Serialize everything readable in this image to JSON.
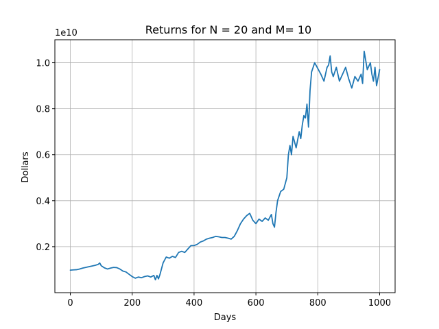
{
  "chart_data": {
    "type": "line",
    "title": "Returns for N = 20 and M= 10",
    "xlabel": "Days",
    "ylabel": "Dollars",
    "offset_label": "1e10",
    "xlim": [
      -50,
      1050
    ],
    "ylim": [
      0.0,
      1.1
    ],
    "xticks": [
      0,
      200,
      400,
      600,
      800,
      1000
    ],
    "xtick_labels": [
      "0",
      "200",
      "400",
      "600",
      "800",
      "1000"
    ],
    "yticks": [
      0.2,
      0.4,
      0.6,
      0.8,
      1.0
    ],
    "ytick_labels": [
      "0.2",
      "0.4",
      "0.6",
      "0.8",
      "1.0"
    ],
    "grid": true,
    "line_color": "#1f77b4",
    "series": [
      {
        "x": [
          0,
          10,
          20,
          30,
          40,
          50,
          60,
          70,
          80,
          90,
          95,
          100,
          110,
          120,
          130,
          140,
          150,
          160,
          170,
          180,
          190,
          200,
          210,
          220,
          230,
          240,
          250,
          260,
          270,
          275,
          280,
          285,
          290,
          300,
          310,
          320,
          330,
          340,
          350,
          360,
          370,
          380,
          390,
          400,
          410,
          420,
          430,
          440,
          450,
          460,
          470,
          480,
          490,
          500,
          510,
          520,
          530,
          540,
          550,
          560,
          570,
          580,
          590,
          600,
          610,
          620,
          630,
          640,
          650,
          655,
          660,
          665,
          670,
          680,
          690,
          700,
          705,
          710,
          715,
          720,
          730,
          740,
          745,
          750,
          755,
          760,
          765,
          770,
          775,
          780,
          790,
          800,
          810,
          820,
          830,
          835,
          840,
          845,
          850,
          860,
          870,
          880,
          890,
          900,
          910,
          920,
          930,
          940,
          945,
          950,
          960,
          970,
          975,
          980,
          985,
          990,
          1000
        ],
        "y": [
          0.098,
          0.099,
          0.1,
          0.103,
          0.107,
          0.11,
          0.113,
          0.116,
          0.119,
          0.123,
          0.129,
          0.117,
          0.108,
          0.103,
          0.107,
          0.11,
          0.109,
          0.103,
          0.094,
          0.09,
          0.08,
          0.07,
          0.063,
          0.068,
          0.065,
          0.07,
          0.073,
          0.068,
          0.075,
          0.056,
          0.075,
          0.06,
          0.08,
          0.13,
          0.155,
          0.15,
          0.158,
          0.153,
          0.175,
          0.18,
          0.175,
          0.19,
          0.205,
          0.205,
          0.21,
          0.22,
          0.225,
          0.233,
          0.237,
          0.24,
          0.245,
          0.243,
          0.24,
          0.24,
          0.237,
          0.233,
          0.245,
          0.27,
          0.3,
          0.32,
          0.335,
          0.345,
          0.315,
          0.3,
          0.32,
          0.31,
          0.325,
          0.315,
          0.34,
          0.3,
          0.285,
          0.35,
          0.4,
          0.44,
          0.45,
          0.5,
          0.6,
          0.64,
          0.6,
          0.68,
          0.63,
          0.7,
          0.67,
          0.73,
          0.77,
          0.76,
          0.82,
          0.72,
          0.88,
          0.96,
          1.0,
          0.975,
          0.95,
          0.92,
          0.98,
          0.99,
          1.03,
          0.96,
          0.94,
          0.98,
          0.92,
          0.95,
          0.98,
          0.93,
          0.89,
          0.94,
          0.92,
          0.95,
          0.91,
          1.05,
          0.97,
          1.0,
          0.95,
          0.92,
          0.98,
          0.9,
          0.97
        ]
      }
    ]
  }
}
